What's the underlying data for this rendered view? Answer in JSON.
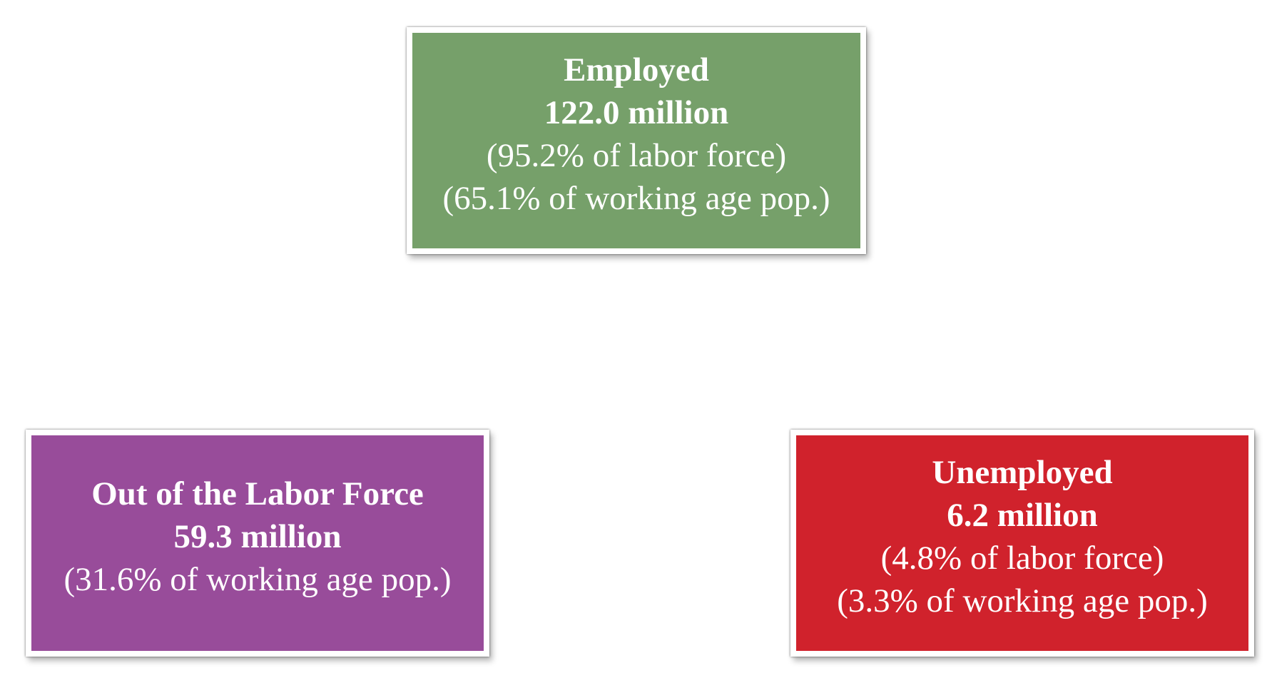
{
  "boxes": {
    "employed": {
      "title": "Employed",
      "amount": "122.0 million",
      "share_labor_force": "(95.2% of labor force)",
      "share_working_age": "(65.1% of working age pop.)",
      "color": "#76a06a"
    },
    "out_of_labor_force": {
      "title": "Out of the Labor Force",
      "amount": "59.3 million",
      "share_working_age": "(31.6% of working age pop.)",
      "color": "#984c9a"
    },
    "unemployed": {
      "title": "Unemployed",
      "amount": "6.2 million",
      "share_labor_force": "(4.8% of labor force)",
      "share_working_age": "(3.3% of working age pop.)",
      "color": "#d0222c"
    }
  }
}
